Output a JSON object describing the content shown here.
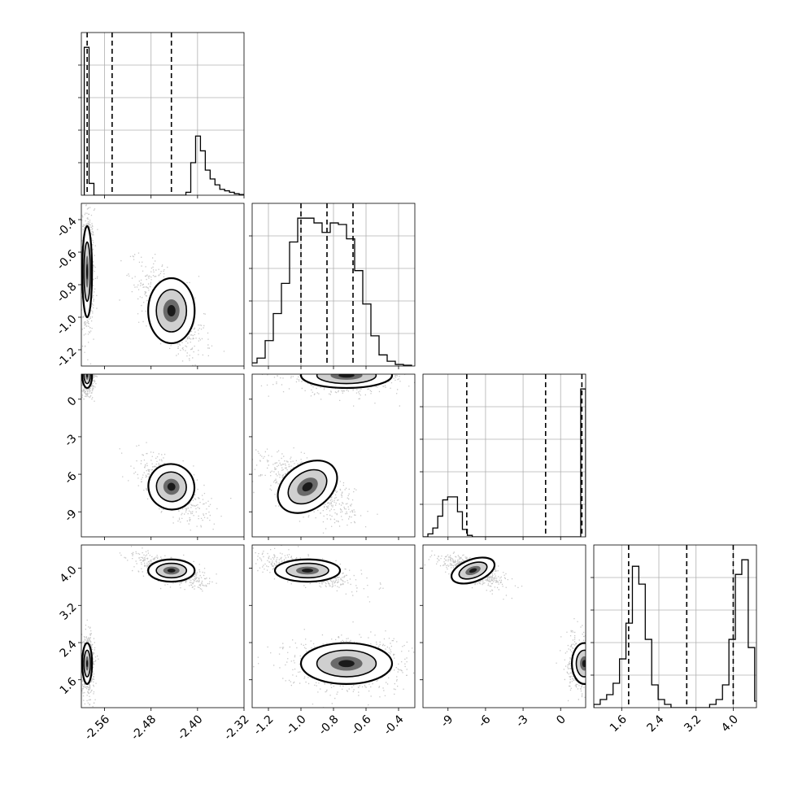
{
  "chart_data": {
    "type": "corner",
    "title": "",
    "parameters": [
      "",
      "",
      "",
      ""
    ],
    "ranges": [
      [
        -2.6,
        -2.32
      ],
      [
        -1.3,
        -0.3
      ],
      [
        -11,
        2
      ],
      [
        1.0,
        4.5
      ]
    ],
    "ticks": [
      [
        "-2.56",
        "-2.48",
        "-2.40",
        "-2.32"
      ],
      [
        "-1.2",
        "-1.0",
        "-0.8",
        "-0.6",
        "-0.4"
      ],
      [
        "-9",
        "-6",
        "-3",
        "0"
      ],
      [
        "1.6",
        "2.4",
        "3.2",
        "4.0"
      ]
    ],
    "tick_values": [
      [
        -2.56,
        -2.48,
        -2.4,
        -2.32
      ],
      [
        -1.2,
        -1.0,
        -0.8,
        -0.6,
        -0.4
      ],
      [
        -9,
        -6,
        -3,
        0
      ],
      [
        1.6,
        2.4,
        3.2,
        4.0
      ]
    ],
    "quantiles": [
      [
        -2.59,
        -2.547,
        -2.445
      ],
      [
        -1.0,
        -0.84,
        -0.68
      ],
      [
        -7.5,
        -1.2,
        1.7
      ],
      [
        1.75,
        3.0,
        4.0
      ]
    ],
    "histograms": [
      [
        1.0,
        0.08,
        0,
        0,
        0,
        0,
        0,
        0,
        0,
        0,
        0,
        0,
        0,
        0,
        0,
        0,
        0,
        0,
        0,
        0,
        0,
        0.02,
        0.22,
        0.4,
        0.3,
        0.17,
        0.11,
        0.07,
        0.04,
        0.03,
        0.02,
        0.01,
        0.005
      ],
      [
        0.02,
        0.05,
        0.16,
        0.33,
        0.52,
        0.78,
        0.93,
        0.93,
        0.9,
        0.84,
        0.9,
        0.89,
        0.8,
        0.6,
        0.39,
        0.19,
        0.07,
        0.03,
        0.01,
        0.005
      ],
      [
        0.0,
        0.02,
        0.06,
        0.14,
        0.25,
        0.27,
        0.27,
        0.17,
        0.05,
        0.01,
        0.0,
        0.0,
        0.0,
        0.0,
        0.0,
        0.0,
        0.0,
        0.0,
        0.0,
        0.0,
        0.0,
        0.0,
        0.0,
        0.0,
        0.0,
        0.0,
        0.0,
        0.0,
        0.0,
        0.0,
        0.0,
        0.0,
        1.0
      ],
      [
        0.02,
        0.05,
        0.08,
        0.15,
        0.3,
        0.52,
        0.87,
        0.76,
        0.42,
        0.14,
        0.05,
        0.02,
        0.0,
        0.0,
        0.0,
        0.0,
        0.0,
        0.0,
        0.02,
        0.05,
        0.14,
        0.42,
        0.82,
        0.91,
        0.37,
        0.04
      ]
    ],
    "hist_range": [
      [
        -2.595,
        -2.32
      ],
      [
        -1.32,
        -0.32
      ],
      [
        -11,
        2
      ],
      [
        1.0,
        4.6
      ]
    ],
    "hist_ymax": [
      1.0,
      0.93,
      1.0,
      0.91
    ],
    "modes": [
      {
        "mu": [
          -2.59,
          -0.72,
          1.9,
          1.95
        ],
        "sd": [
          0.004,
          0.14,
          0.5,
          0.22
        ],
        "w": 0.5
      },
      {
        "mu": [
          -2.445,
          -0.96,
          -7.0,
          3.95
        ],
        "sd": [
          0.02,
          0.1,
          0.9,
          0.12
        ],
        "w": 0.5
      }
    ],
    "grid": true
  }
}
